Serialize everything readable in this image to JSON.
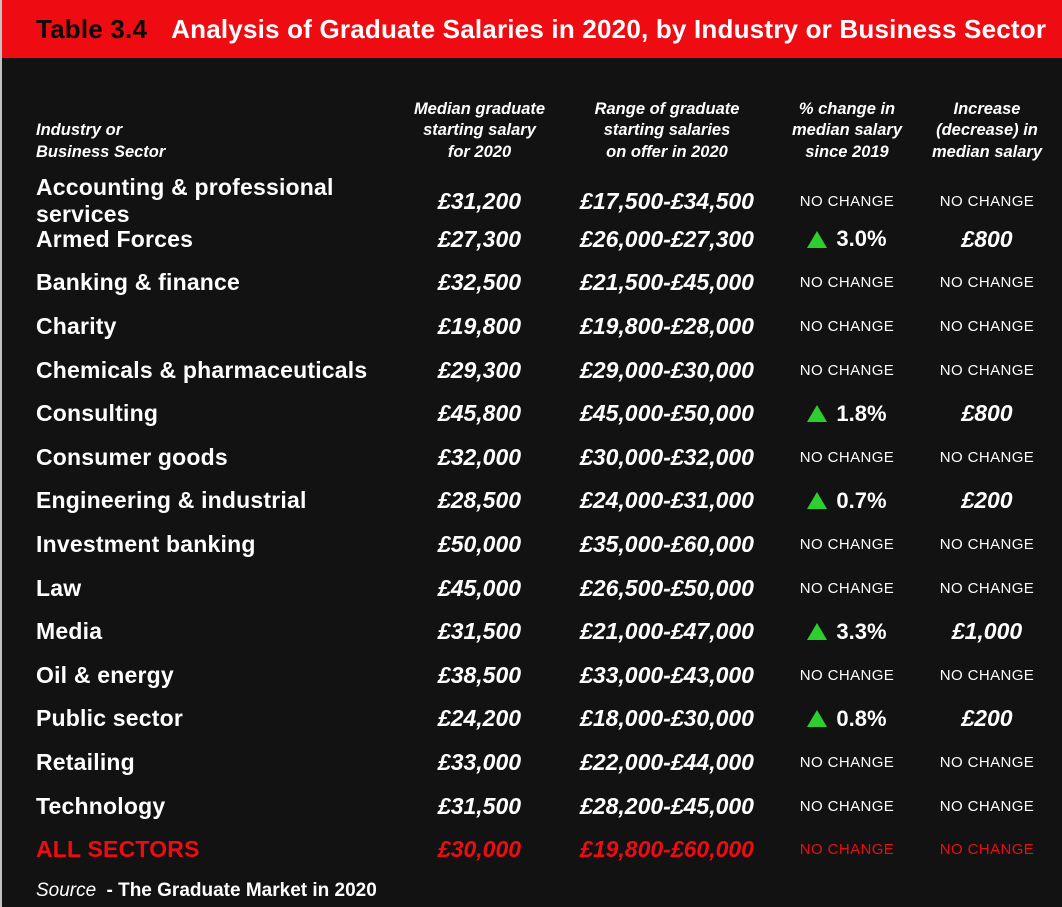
{
  "title_bar": {
    "label": "Table 3.4",
    "title": "Analysis of Graduate Salaries in 2020, by Industry or Business Sector"
  },
  "headers": {
    "industry": "Industry or\nBusiness Sector",
    "median": "Median graduate\nstarting salary\nfor 2020",
    "range": "Range of graduate\nstarting salaries\non offer in 2020",
    "change": "% change in\nmedian salary\nsince 2019",
    "increase": "Increase\n(decrease) in\nmedian salary"
  },
  "source": {
    "label": "Source",
    "text": "- The Graduate Market in 2020"
  },
  "colors": {
    "accent_red": "#ee0c12",
    "positive_green": "#2fce2f",
    "background": "#121212",
    "text": "#ffffff"
  },
  "chart_data": {
    "type": "table",
    "title": "Table 3.4  Analysis of Graduate Salaries in 2020, by Industry or Business Sector",
    "columns": [
      "Industry or Business Sector",
      "Median graduate starting salary for 2020",
      "Range of graduate starting salaries on offer in 2020",
      "% change in median salary since 2019",
      "Increase (decrease) in median salary"
    ],
    "rows": [
      {
        "industry": "Accounting & professional services",
        "median_2020": "£31,200",
        "range_2020": "£17,500-£34,500",
        "pct_change_since_2019": "NO CHANGE",
        "change_direction": null,
        "median_salary_increase": "NO CHANGE",
        "highlight": false
      },
      {
        "industry": "Armed Forces",
        "median_2020": "£27,300",
        "range_2020": "£26,000-£27,300",
        "pct_change_since_2019": "3.0%",
        "change_direction": "up",
        "median_salary_increase": "£800",
        "highlight": false
      },
      {
        "industry": "Banking & finance",
        "median_2020": "£32,500",
        "range_2020": "£21,500-£45,000",
        "pct_change_since_2019": "NO CHANGE",
        "change_direction": null,
        "median_salary_increase": "NO CHANGE",
        "highlight": false
      },
      {
        "industry": "Charity",
        "median_2020": "£19,800",
        "range_2020": "£19,800-£28,000",
        "pct_change_since_2019": "NO CHANGE",
        "change_direction": null,
        "median_salary_increase": "NO CHANGE",
        "highlight": false
      },
      {
        "industry": "Chemicals & pharmaceuticals",
        "median_2020": "£29,300",
        "range_2020": "£29,000-£30,000",
        "pct_change_since_2019": "NO CHANGE",
        "change_direction": null,
        "median_salary_increase": "NO CHANGE",
        "highlight": false
      },
      {
        "industry": "Consulting",
        "median_2020": "£45,800",
        "range_2020": "£45,000-£50,000",
        "pct_change_since_2019": "1.8%",
        "change_direction": "up",
        "median_salary_increase": "£800",
        "highlight": false
      },
      {
        "industry": "Consumer goods",
        "median_2020": "£32,000",
        "range_2020": "£30,000-£32,000",
        "pct_change_since_2019": "NO CHANGE",
        "change_direction": null,
        "median_salary_increase": "NO CHANGE",
        "highlight": false
      },
      {
        "industry": "Engineering & industrial",
        "median_2020": "£28,500",
        "range_2020": "£24,000-£31,000",
        "pct_change_since_2019": "0.7%",
        "change_direction": "up",
        "median_salary_increase": "£200",
        "highlight": false
      },
      {
        "industry": "Investment banking",
        "median_2020": "£50,000",
        "range_2020": "£35,000-£60,000",
        "pct_change_since_2019": "NO CHANGE",
        "change_direction": null,
        "median_salary_increase": "NO CHANGE",
        "highlight": false
      },
      {
        "industry": "Law",
        "median_2020": "£45,000",
        "range_2020": "£26,500-£50,000",
        "pct_change_since_2019": "NO CHANGE",
        "change_direction": null,
        "median_salary_increase": "NO CHANGE",
        "highlight": false
      },
      {
        "industry": "Media",
        "median_2020": "£31,500",
        "range_2020": "£21,000-£47,000",
        "pct_change_since_2019": "3.3%",
        "change_direction": "up",
        "median_salary_increase": "£1,000",
        "highlight": false
      },
      {
        "industry": "Oil & energy",
        "median_2020": "£38,500",
        "range_2020": "£33,000-£43,000",
        "pct_change_since_2019": "NO CHANGE",
        "change_direction": null,
        "median_salary_increase": "NO CHANGE",
        "highlight": false
      },
      {
        "industry": "Public sector",
        "median_2020": "£24,200",
        "range_2020": "£18,000-£30,000",
        "pct_change_since_2019": "0.8%",
        "change_direction": "up",
        "median_salary_increase": "£200",
        "highlight": false
      },
      {
        "industry": "Retailing",
        "median_2020": "£33,000",
        "range_2020": "£22,000-£44,000",
        "pct_change_since_2019": "NO CHANGE",
        "change_direction": null,
        "median_salary_increase": "NO CHANGE",
        "highlight": false
      },
      {
        "industry": "Technology",
        "median_2020": "£31,500",
        "range_2020": "£28,200-£45,000",
        "pct_change_since_2019": "NO CHANGE",
        "change_direction": null,
        "median_salary_increase": "NO CHANGE",
        "highlight": false
      },
      {
        "industry": "ALL SECTORS",
        "median_2020": "£30,000",
        "range_2020": "£19,800-£60,000",
        "pct_change_since_2019": "NO CHANGE",
        "change_direction": null,
        "median_salary_increase": "NO CHANGE",
        "highlight": true
      }
    ],
    "source": "Source - The Graduate Market in 2020",
    "legend_position": "none",
    "grid": false
  }
}
